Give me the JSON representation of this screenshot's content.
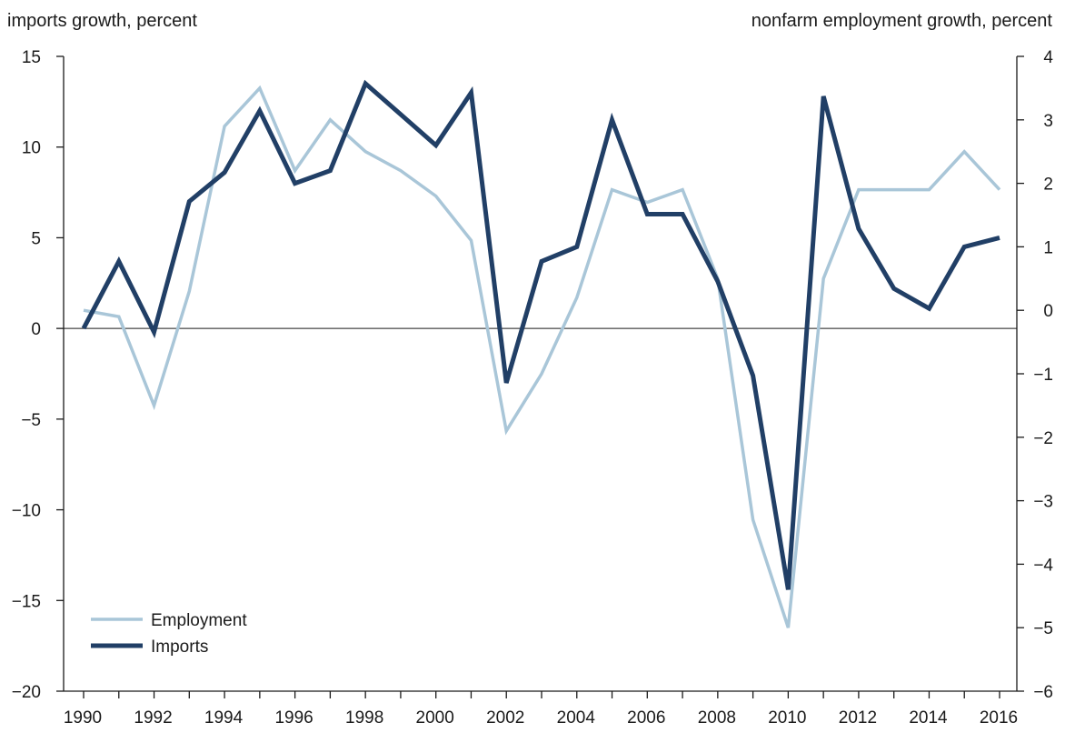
{
  "chart_data": {
    "type": "line",
    "ylabel_left": "imports growth, percent",
    "ylabel_right": "nonfarm employment growth, percent",
    "xlim": [
      1990,
      2016
    ],
    "x_ticks": [
      1990,
      1992,
      1994,
      1996,
      1998,
      2000,
      2002,
      2004,
      2006,
      2008,
      2010,
      2012,
      2014,
      2016
    ],
    "ylim_left": [
      -20,
      15
    ],
    "yticks_left": [
      15,
      10,
      5,
      0,
      -5,
      -10,
      -15,
      -20
    ],
    "ylim_right": [
      -6,
      4
    ],
    "yticks_right": [
      4,
      3,
      2,
      1,
      0,
      -1,
      -2,
      -3,
      -4,
      -5,
      -6
    ],
    "legend_position": "bottom-left",
    "series": [
      {
        "name": "Employment",
        "axis": "right",
        "color": "#a9c6d8",
        "x": [
          1990,
          1991,
          1992,
          1993,
          1994,
          1995,
          1996,
          1997,
          1998,
          1999,
          2000,
          2001,
          2002,
          2003,
          2004,
          2005,
          2006,
          2007,
          2008,
          2009,
          2010,
          2011,
          2012,
          2013,
          2014,
          2015,
          2016
        ],
        "values": [
          0.0,
          -0.1,
          -1.5,
          0.3,
          2.9,
          3.5,
          2.2,
          3.0,
          2.5,
          2.2,
          1.8,
          1.1,
          -1.9,
          -1.0,
          0.2,
          1.9,
          1.7,
          1.9,
          0.5,
          -3.3,
          -5.0,
          0.5,
          1.9,
          1.9,
          1.9,
          2.5,
          1.9
        ]
      },
      {
        "name": "Imports",
        "axis": "left",
        "color": "#213f66",
        "x": [
          1990,
          1991,
          1992,
          1993,
          1994,
          1995,
          1996,
          1997,
          1998,
          1999,
          2000,
          2001,
          2002,
          2003,
          2004,
          2005,
          2006,
          2007,
          2008,
          2009,
          2010,
          2011,
          2012,
          2013,
          2014,
          2015,
          2016
        ],
        "values": [
          0.0,
          3.7,
          -0.2,
          7.0,
          8.6,
          12.0,
          8.0,
          8.7,
          13.5,
          11.8,
          10.1,
          13.0,
          -3.0,
          3.7,
          4.5,
          11.5,
          6.3,
          6.3,
          2.6,
          -2.6,
          -14.4,
          12.8,
          5.5,
          2.2,
          1.1,
          4.5,
          5.0
        ]
      }
    ]
  }
}
